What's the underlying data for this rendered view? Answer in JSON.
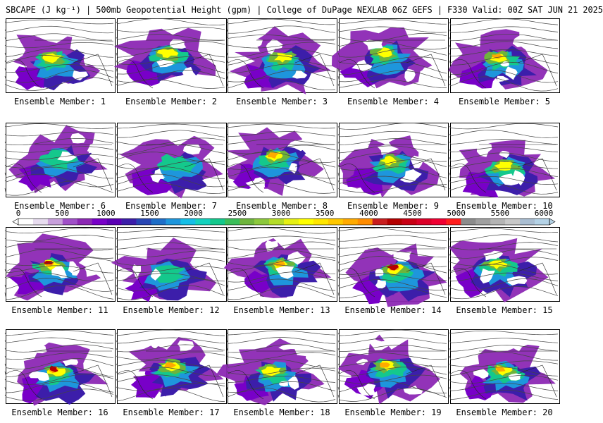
{
  "header": {
    "title": "SBCAPE (J kg⁻¹) | 500mb Geopotential Height (gpm) | College of DuPage NEXLAB 06Z GEFS | F330 Valid: 00Z SAT JUN 21 2025"
  },
  "colorbar": {
    "ticks": [
      "0",
      "500",
      "1000",
      "1500",
      "2000",
      "2500",
      "3000",
      "3500",
      "4000",
      "4500",
      "5000",
      "5500",
      "6000"
    ],
    "colors": [
      "#ffffff",
      "#e7dcef",
      "#c8a0dc",
      "#a050c8",
      "#8c28b4",
      "#7800c8",
      "#5a00b4",
      "#3c1eaa",
      "#2846b4",
      "#1e6ec8",
      "#1e96dc",
      "#14bee6",
      "#14d2be",
      "#14c88c",
      "#3cbe5a",
      "#6eb43c",
      "#8cc83c",
      "#b4dc28",
      "#e6f014",
      "#ffff00",
      "#ffe600",
      "#ffc800",
      "#ffaa00",
      "#ff8c00",
      "#c81e1e",
      "#b40000",
      "#c80014",
      "#dc0028",
      "#f00032",
      "#ff1e1e",
      "#8c8c8c",
      "#a0a0a0",
      "#b4b4b4",
      "#c8c8c8",
      "#aabed2",
      "#b4d2e6"
    ]
  },
  "members": [
    {
      "label": "Ensemble Member: 1",
      "intensity": 2
    },
    {
      "label": "Ensemble Member: 2",
      "intensity": 2
    },
    {
      "label": "Ensemble Member: 3",
      "intensity": 2
    },
    {
      "label": "Ensemble Member: 4",
      "intensity": 2
    },
    {
      "label": "Ensemble Member: 5",
      "intensity": 3
    },
    {
      "label": "Ensemble Member: 6",
      "intensity": 1
    },
    {
      "label": "Ensemble Member: 7",
      "intensity": 1
    },
    {
      "label": "Ensemble Member: 8",
      "intensity": 3
    },
    {
      "label": "Ensemble Member: 9",
      "intensity": 2
    },
    {
      "label": "Ensemble Member: 10",
      "intensity": 2
    },
    {
      "label": "Ensemble Member: 11",
      "intensity": 4
    },
    {
      "label": "Ensemble Member: 12",
      "intensity": 1
    },
    {
      "label": "Ensemble Member: 13",
      "intensity": 3
    },
    {
      "label": "Ensemble Member: 14",
      "intensity": 4
    },
    {
      "label": "Ensemble Member: 15",
      "intensity": 2
    },
    {
      "label": "Ensemble Member: 16",
      "intensity": 4
    },
    {
      "label": "Ensemble Member: 17",
      "intensity": 3
    },
    {
      "label": "Ensemble Member: 18",
      "intensity": 2
    },
    {
      "label": "Ensemble Member: 19",
      "intensity": 3
    },
    {
      "label": "Ensemble Member: 20",
      "intensity": 3
    }
  ]
}
